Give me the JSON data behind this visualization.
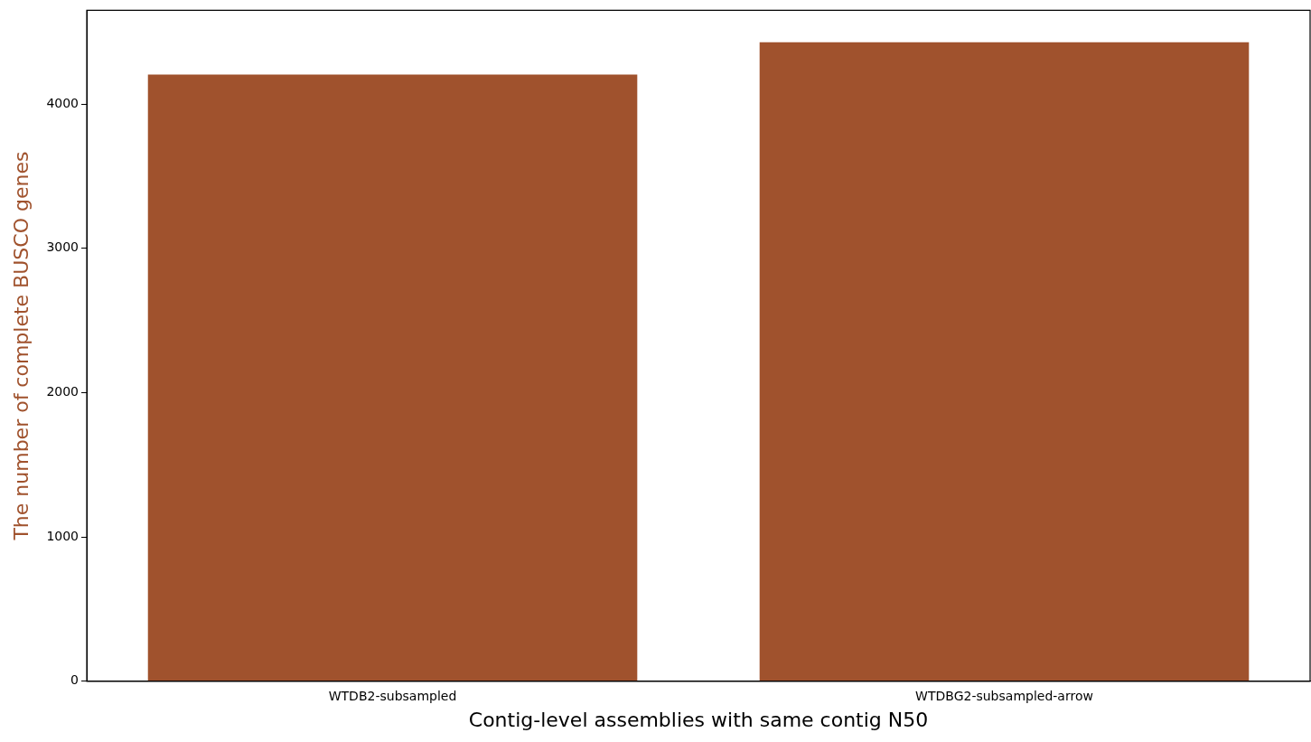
{
  "chart_data": {
    "type": "bar",
    "xlabel": "Contig-level assemblies with same contig N50",
    "ylabel": "The number of complete BUSCO genes",
    "categories": [
      "WTDB2-subsampled",
      "WTDBG2-subsampled-arrow"
    ],
    "series": [
      {
        "color": "#a0522d",
        "values": [
          4205,
          4428
        ]
      }
    ],
    "ylim": [
      0,
      4650
    ],
    "yticks": [
      0,
      1000,
      2000,
      3000,
      4000
    ],
    "grid": false,
    "legend": false
  }
}
